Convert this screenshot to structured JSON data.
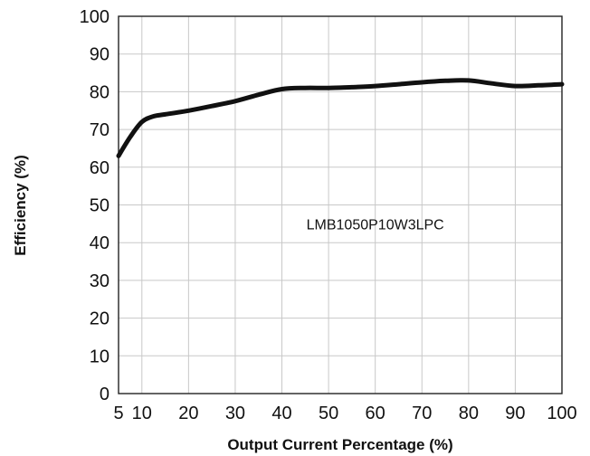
{
  "chart_data": {
    "type": "line",
    "title": "",
    "xlabel": "Output Current Percentage (%)",
    "ylabel": "Efficiency (%)",
    "xlim": [
      5,
      100
    ],
    "ylim": [
      0,
      100
    ],
    "x_ticks": [
      "5",
      "10",
      "20",
      "30",
      "40",
      "50",
      "60",
      "70",
      "80",
      "90",
      "100"
    ],
    "y_ticks": [
      "0",
      "10",
      "20",
      "30",
      "40",
      "50",
      "60",
      "70",
      "80",
      "90",
      "100"
    ],
    "grid": true,
    "annotation": {
      "text": "LMB1050P10W3LPC",
      "x": 60,
      "y": 45
    },
    "series": [
      {
        "x": [
          5,
          7.5,
          10,
          12.5,
          15,
          20,
          25,
          30,
          35,
          40,
          45,
          50,
          55,
          60,
          65,
          70,
          75,
          80,
          85,
          90,
          95,
          100
        ],
        "y": [
          63,
          68,
          72,
          73.5,
          74,
          75,
          76.2,
          77.5,
          79.2,
          80.7,
          81,
          81,
          81.2,
          81.5,
          82,
          82.5,
          82.9,
          83,
          82.2,
          81.5,
          81.7,
          82
        ]
      }
    ]
  }
}
